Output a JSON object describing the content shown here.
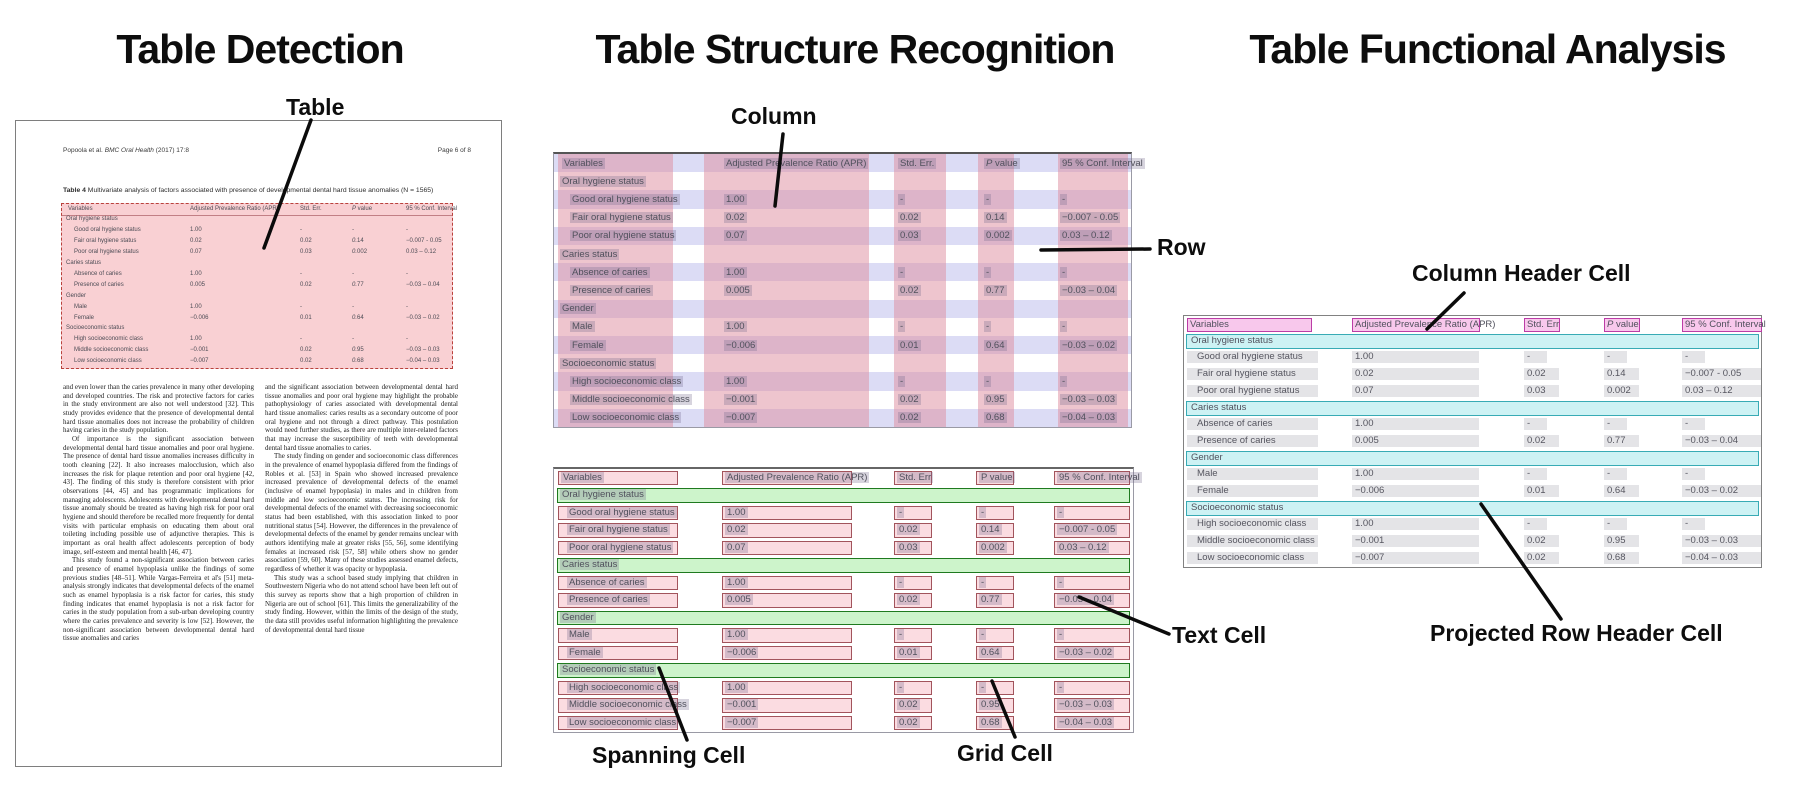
{
  "panels": {
    "detection": {
      "title": "Table Detection",
      "label_table": "Table"
    },
    "structure": {
      "title": "Table Structure Recognition",
      "label_column": "Column",
      "label_row": "Row",
      "label_spanning": "Spanning Cell",
      "label_grid": "Grid Cell",
      "label_text": "Text Cell"
    },
    "functional": {
      "title": "Table Functional Analysis",
      "label_col_header": "Column Header Cell",
      "label_proj_row": "Projected Row Header Cell"
    }
  },
  "document": {
    "header_author": "Popoola et al.",
    "header_journal": "BMC Oral Health",
    "header_issue": " (2017) 17:8",
    "header_page": "Page 6 of 8",
    "caption_label": "Table 4",
    "caption_text": " Multivariate analysis of factors associated with presence of developmental dental hard tissue anomalies (N = 1565)",
    "columns_left": [
      "and even lower than the caries prevalence in many other developing and developed countries. The risk and protective factors for caries in the study environment are also not well understood [32]. This study provides evidence that the presence of developmental dental hard tissue anomalies does not increase the probability of children having caries in the study population.",
      "Of importance is the significant association between developmental dental hard tissue anomalies and poor oral hygiene. The presence of dental hard tissue anomalies increases difficulty in tooth cleaning [22]. It also increases malocclusion, which also increases the risk for plaque retention and poor oral hygiene [42, 43]. The finding of this study is therefore consistent with prior observations [44, 45] and has programmatic implications for managing adolescents. Adolescents with developmental dental hard tissue anomaly should be treated as having high risk for poor oral hygiene and should therefore be recalled more frequently for dental visits with particular emphasis on educating them about oral toileting including possible use of adjunctive therapies. This is important as oral health affect adolescents perception of body image, self-esteem and mental health [46, 47].",
      "This study found a non-significant association between caries and presence of enamel hypoplasia unlike the findings of some previous studies [48–51]. While Vargas-Ferreira et al's [51] meta-analysis strongly indicates that developmental defects of the enamel such as enamel hypoplasia is a risk factor for caries, this study finding indicates that enamel hypoplasia is not a risk factor for caries in the study population from a sub-urban developing country where the caries prevalence and severity is low [52]. However, the non-significant association between developmental dental hard tissue anomalies and caries"
    ],
    "columns_right": [
      "and the significant association between developmental dental hard tissue anomalies and poor oral hygiene may highlight the probable pathophysiology of caries associated with developmental dental hard tissue anomalies: caries results as a secondary outcome of poor oral hygiene and not through a direct pathway. This postulation would need further studies, as there are multiple inter-related factors that may increase the susceptibility of teeth with developmental dental hard tissue anomalies to caries.",
      "The study finding on gender and socioeconomic class differences in the prevalence of enamel hypoplasia differed from the findings of Robles et al. [53] in Spain who showed increased prevalence increased prevalence of developmental defects of the enamel (inclusive of enamel hypoplasia) in males and in children from middle and low socioeconomic status. The increasing risk for developmental defects of the enamel with decreasing socioeconomic status had been established, with this association linked to poor nutritional status [54]. However, the differences in the prevalence of developmental defects of the enamel by gender remains unclear with authors identifying male at greater risks [55, 56], some identifying females at increased risk [57, 58] while others show no gender association [59, 60]. Many of these studies assessed enamel defects, regardless of whether it was opacity or hypoplasia.",
      "This study was a school based study implying that children in Southwestern Nigeria who do not attend school have been left out of this survey as reports show that a high proportion of children in Nigeria are out of school [61]. This limits the generalizability of the study finding. However, within the limits of the design of the study, the data still provides useful information highlighting the prevalence of developmental dental hard tissue"
    ]
  },
  "table": {
    "headers": [
      "Variables",
      "Adjusted Prevalence Ratio (APR)",
      "Std. Err.",
      "P value",
      "95 % Conf. Interval"
    ],
    "headers_short": [
      "Variables",
      "Adjusted Prevalence Ratio (APR)",
      "Std. Err",
      "P value",
      "95 % Conf. Interval"
    ],
    "rows": [
      {
        "type": "group",
        "label": "Oral hygiene status"
      },
      {
        "type": "data",
        "label": "Good oral hygiene status",
        "apr": "1.00",
        "se": "-",
        "p": "-",
        "ci": "-"
      },
      {
        "type": "data",
        "label": "Fair oral hygiene status",
        "apr": "0.02",
        "se": "0.02",
        "p": "0.14",
        "ci": "−0.007 - 0.05"
      },
      {
        "type": "data",
        "label": "Poor oral hygiene status",
        "apr": "0.07",
        "se": "0.03",
        "p": "0.002",
        "ci": "0.03 – 0.12"
      },
      {
        "type": "group",
        "label": "Caries status"
      },
      {
        "type": "data",
        "label": "Absence of caries",
        "apr": "1.00",
        "se": "-",
        "p": "-",
        "ci": "-"
      },
      {
        "type": "data",
        "label": "Presence of caries",
        "apr": "0.005",
        "se": "0.02",
        "p": "0.77",
        "ci": "−0.03 – 0.04"
      },
      {
        "type": "group",
        "label": "Gender"
      },
      {
        "type": "data",
        "label": "Male",
        "apr": "1.00",
        "se": "-",
        "p": "-",
        "ci": "-"
      },
      {
        "type": "data",
        "label": "Female",
        "apr": "−0.006",
        "se": "0.01",
        "p": "0.64",
        "ci": "−0.03 – 0.02"
      },
      {
        "type": "group",
        "label": "Socioeconomic status"
      },
      {
        "type": "data",
        "label": "High socioeconomic class",
        "apr": "1.00",
        "se": "-",
        "p": "-",
        "ci": "-"
      },
      {
        "type": "data",
        "label": "Middle socioeconomic class",
        "apr": "−0.001",
        "se": "0.02",
        "p": "0.95",
        "ci": "−0.03 – 0.03"
      },
      {
        "type": "data",
        "label": "Low socioeconomic class",
        "apr": "−0.007",
        "se": "0.02",
        "p": "0.68",
        "ci": "−0.04 – 0.03"
      }
    ]
  },
  "colors": {
    "detection_fill": "#f29ca3",
    "detection_border": "#b9413c",
    "column_band": "#de8c9e",
    "row_stripe": "#dcdcf5",
    "grid_cell_fill": "#fbdce1",
    "grid_cell_border": "#a2545c",
    "spanning_fill": "#cdf4cb",
    "spanning_border": "#1f7a1f",
    "col_header_fill": "#f8c8ec",
    "col_header_border": "#bb3da6",
    "proj_row_fill": "#cdf2f4",
    "proj_row_border": "#38abb5",
    "text_highlight": "#6e6487",
    "gray_bar": "#e4e4e7"
  }
}
